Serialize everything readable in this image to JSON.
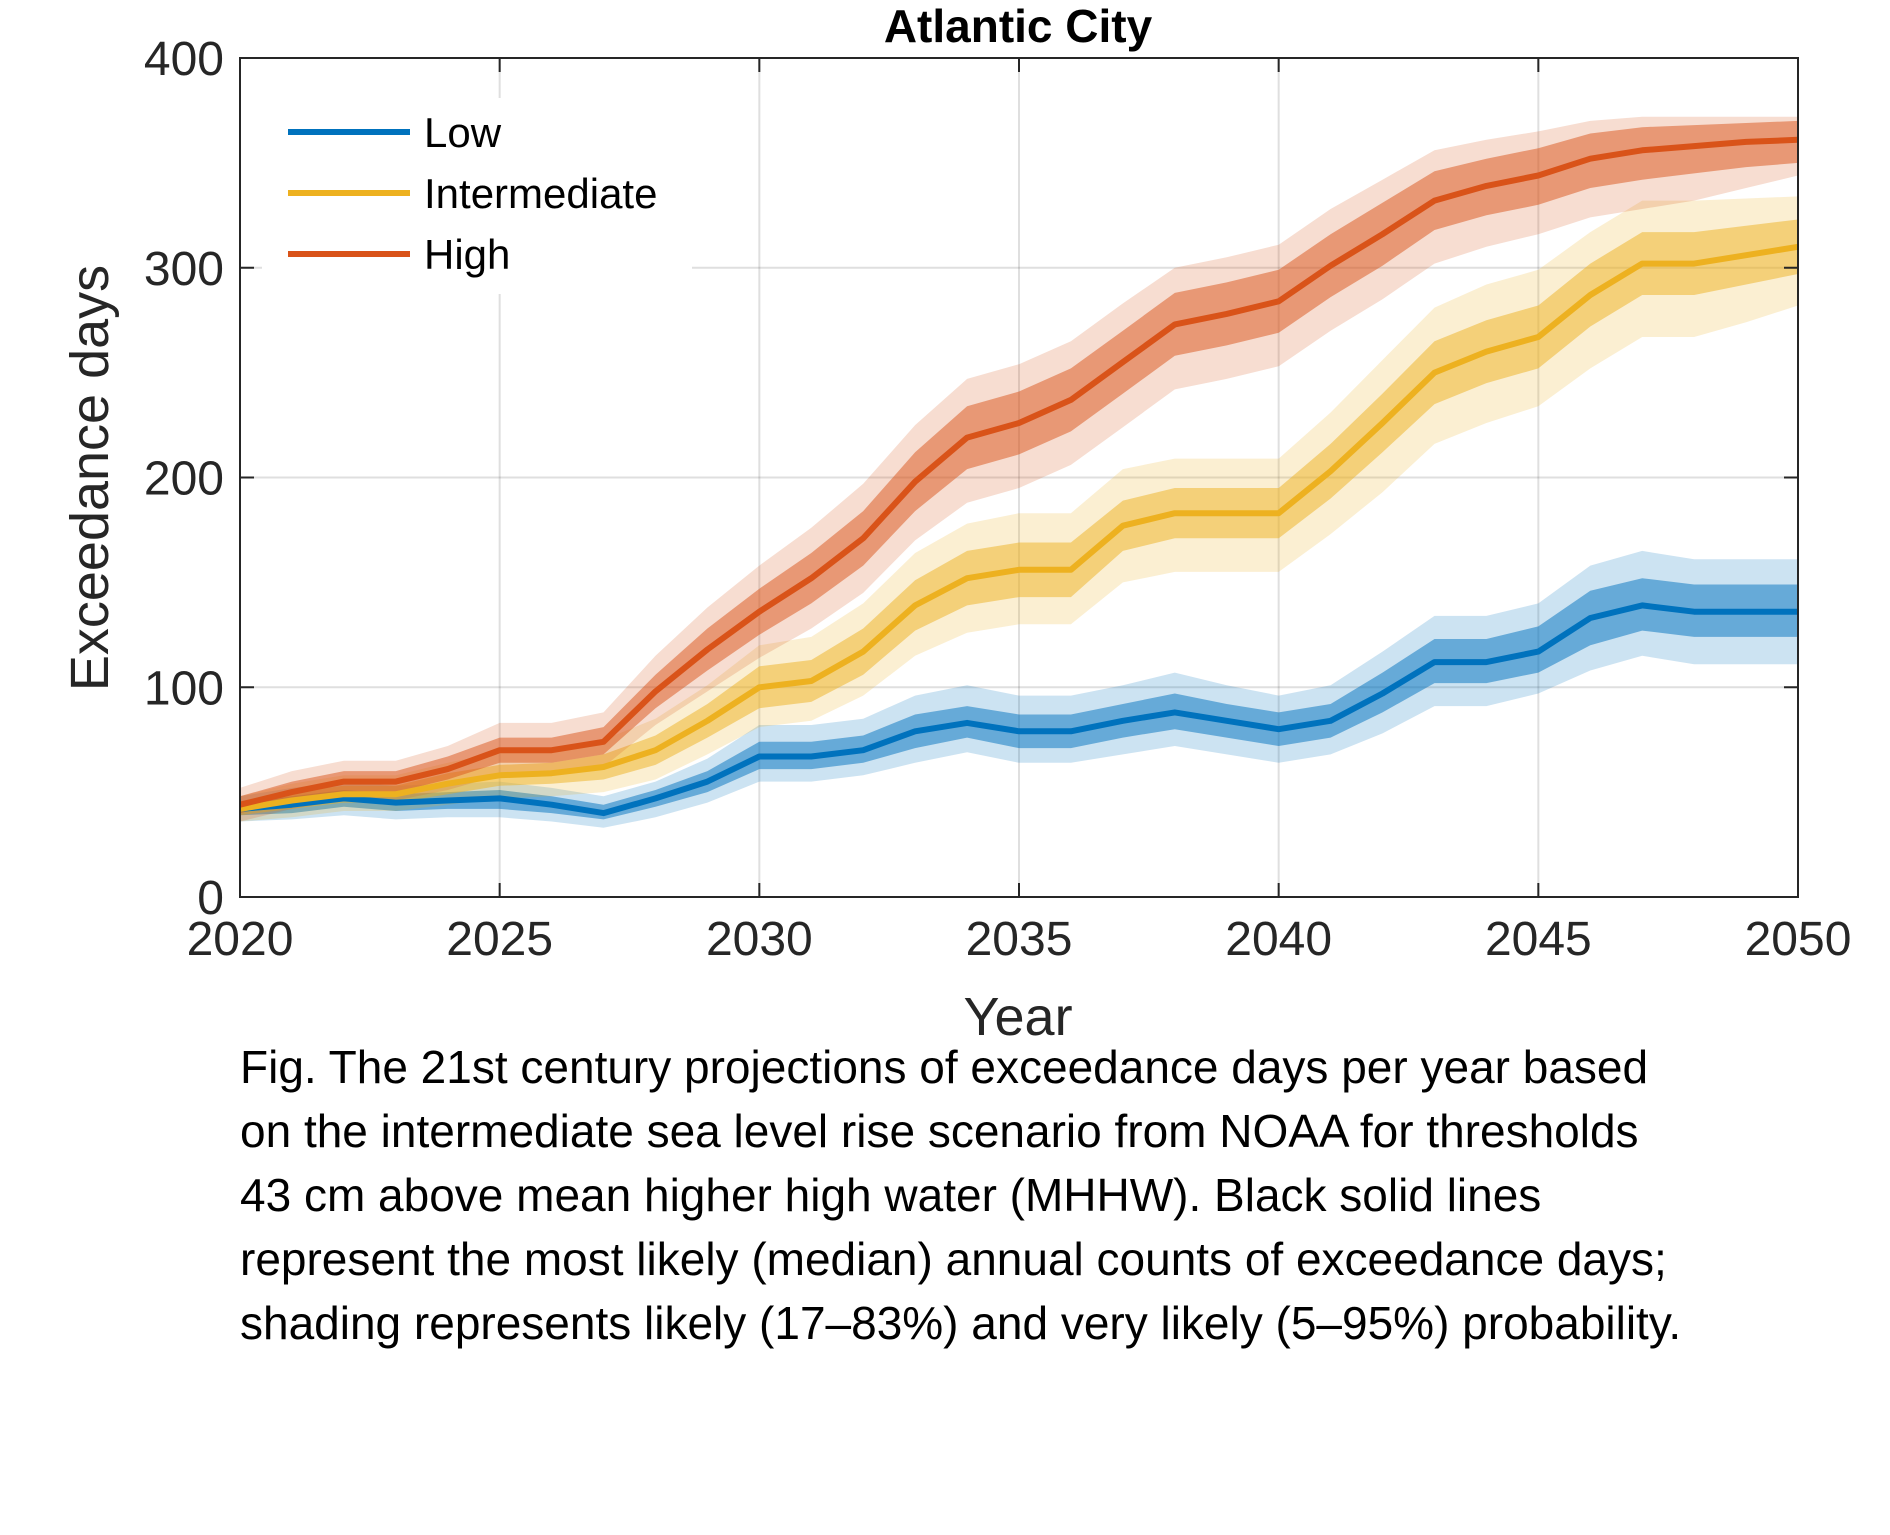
{
  "chart_data": {
    "type": "line",
    "title": "Atlantic City",
    "xlabel": "Year",
    "ylabel": "Exceedance days",
    "xlim": [
      2020,
      2050
    ],
    "ylim": [
      0,
      400
    ],
    "xticks": [
      "2020",
      "2025",
      "2030",
      "2035",
      "2040",
      "2045",
      "2050"
    ],
    "yticks": [
      "0",
      "100",
      "200",
      "300",
      "400"
    ],
    "grid": true,
    "legend_position": "top-left",
    "x": [
      2020,
      2021,
      2022,
      2023,
      2024,
      2025,
      2026,
      2027,
      2028,
      2029,
      2030,
      2031,
      2032,
      2033,
      2034,
      2035,
      2036,
      2037,
      2038,
      2039,
      2040,
      2041,
      2042,
      2043,
      2044,
      2045,
      2046,
      2047,
      2048,
      2049,
      2050
    ],
    "series": [
      {
        "name": "Low",
        "color": "#0072BD",
        "median": [
          42,
          44,
          47,
          45,
          46,
          47,
          44,
          40,
          47,
          55,
          67,
          67,
          70,
          79,
          83,
          79,
          79,
          84,
          88,
          84,
          80,
          84,
          97,
          112,
          112,
          117,
          133,
          139,
          136,
          136,
          136
        ],
        "likely_low": [
          39,
          40,
          43,
          41,
          42,
          42,
          40,
          37,
          43,
          50,
          61,
          61,
          64,
          71,
          76,
          71,
          71,
          76,
          80,
          76,
          72,
          76,
          88,
          102,
          102,
          107,
          120,
          127,
          124,
          124,
          124
        ],
        "likely_high": [
          45,
          48,
          51,
          49,
          50,
          51,
          48,
          44,
          51,
          60,
          74,
          74,
          77,
          87,
          91,
          87,
          87,
          92,
          97,
          92,
          88,
          92,
          107,
          123,
          123,
          129,
          146,
          152,
          149,
          149,
          149
        ],
        "very_likely_low": [
          36,
          37,
          39,
          37,
          38,
          38,
          36,
          33,
          38,
          45,
          55,
          55,
          58,
          64,
          69,
          64,
          64,
          68,
          72,
          68,
          64,
          68,
          78,
          91,
          91,
          97,
          108,
          115,
          111,
          111,
          111
        ],
        "very_likely_high": [
          48,
          52,
          55,
          53,
          54,
          55,
          52,
          48,
          55,
          66,
          82,
          82,
          85,
          96,
          101,
          96,
          96,
          101,
          107,
          101,
          96,
          101,
          117,
          134,
          134,
          140,
          158,
          165,
          161,
          161,
          161
        ]
      },
      {
        "name": "Intermediate",
        "color": "#EDB120",
        "median": [
          42,
          46,
          49,
          49,
          54,
          58,
          59,
          62,
          70,
          84,
          100,
          103,
          117,
          139,
          152,
          156,
          156,
          177,
          183,
          183,
          183,
          203,
          226,
          250,
          260,
          267,
          287,
          302,
          302,
          306,
          310
        ],
        "likely_low": [
          39,
          42,
          45,
          45,
          49,
          53,
          54,
          56,
          63,
          76,
          90,
          93,
          106,
          127,
          139,
          143,
          143,
          165,
          171,
          171,
          171,
          190,
          212,
          235,
          245,
          252,
          272,
          287,
          287,
          292,
          297
        ],
        "likely_high": [
          45,
          50,
          53,
          53,
          59,
          63,
          64,
          68,
          77,
          92,
          110,
          113,
          128,
          151,
          165,
          169,
          169,
          189,
          195,
          195,
          195,
          216,
          240,
          265,
          275,
          282,
          302,
          317,
          317,
          320,
          323
        ],
        "very_likely_low": [
          36,
          38,
          41,
          41,
          44,
          47,
          48,
          50,
          56,
          68,
          81,
          84,
          96,
          115,
          126,
          130,
          130,
          150,
          155,
          155,
          155,
          173,
          193,
          216,
          226,
          234,
          252,
          267,
          267,
          274,
          282
        ],
        "very_likely_high": [
          48,
          54,
          58,
          58,
          64,
          69,
          70,
          75,
          85,
          101,
          120,
          124,
          140,
          164,
          178,
          183,
          183,
          204,
          209,
          209,
          209,
          231,
          256,
          281,
          292,
          299,
          317,
          332,
          332,
          333,
          334
        ]
      },
      {
        "name": "High",
        "color": "#D95319",
        "median": [
          44,
          50,
          55,
          55,
          61,
          70,
          70,
          74,
          98,
          118,
          136,
          152,
          171,
          198,
          219,
          226,
          237,
          255,
          273,
          278,
          284,
          301,
          316,
          332,
          339,
          344,
          352,
          356,
          358,
          360,
          361
        ],
        "likely_low": [
          40,
          46,
          50,
          50,
          56,
          64,
          64,
          68,
          90,
          108,
          125,
          140,
          158,
          184,
          204,
          211,
          222,
          240,
          258,
          263,
          269,
          286,
          301,
          318,
          325,
          330,
          338,
          342,
          345,
          348,
          350
        ],
        "likely_high": [
          48,
          55,
          60,
          60,
          67,
          76,
          76,
          81,
          106,
          128,
          147,
          164,
          184,
          212,
          234,
          241,
          252,
          270,
          288,
          293,
          299,
          316,
          331,
          346,
          352,
          357,
          364,
          367,
          368,
          369,
          370
        ],
        "very_likely_low": [
          36,
          42,
          46,
          46,
          51,
          58,
          58,
          62,
          82,
          98,
          114,
          128,
          145,
          170,
          188,
          195,
          206,
          224,
          242,
          247,
          253,
          270,
          285,
          302,
          310,
          316,
          324,
          328,
          332,
          338,
          344
        ],
        "very_likely_high": [
          52,
          60,
          65,
          65,
          72,
          83,
          83,
          88,
          115,
          138,
          158,
          176,
          197,
          225,
          247,
          254,
          265,
          283,
          300,
          305,
          311,
          328,
          342,
          356,
          361,
          365,
          370,
          372,
          372,
          372,
          372
        ]
      }
    ]
  },
  "caption": {
    "lines": [
      "Fig. The 21st century projections of exceedance days per year based",
      "on the intermediate sea level rise scenario from NOAA for thresholds",
      "43 cm above mean higher high water (MHHW). Black solid lines",
      "represent the most likely (median) annual counts of exceedance days;",
      "shading represents likely (17–83%) and very likely (5–95%) probability."
    ]
  }
}
